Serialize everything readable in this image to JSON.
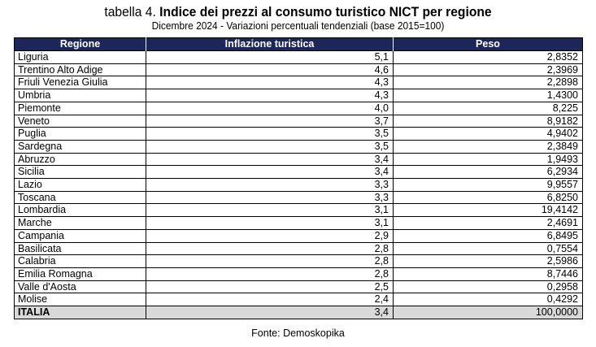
{
  "title_prefix": "tabella 4.",
  "title": "Indice dei prezzi al consumo turistico NICT per regione",
  "subtitle": "Dicembre 2024 - Variazioni percentuali tendenziali (base 2015=100)",
  "header_color": "#1c2758",
  "table": {
    "columns": [
      "Regione",
      "Inflazione turistica",
      "Peso"
    ],
    "rows": [
      [
        "Liguria",
        "5,1",
        "2,8352"
      ],
      [
        "Trentino Alto Adige",
        "4,6",
        "2,3969"
      ],
      [
        "Friuli Venezia Giulia",
        "4,3",
        "2,2898"
      ],
      [
        "Umbria",
        "4,3",
        "1,4300"
      ],
      [
        "Piemonte",
        "4,0",
        "8,225"
      ],
      [
        "Veneto",
        "3,7",
        "8,9182"
      ],
      [
        "Puglia",
        "3,5",
        "4,9402"
      ],
      [
        "Sardegna",
        "3,5",
        "2,3849"
      ],
      [
        "Abruzzo",
        "3,4",
        "1,9493"
      ],
      [
        "Sicilia",
        "3,4",
        "6,2934"
      ],
      [
        "Lazio",
        "3,3",
        "9,9557"
      ],
      [
        "Toscana",
        "3,3",
        "6,8250"
      ],
      [
        "Lombardia",
        "3,1",
        "19,4142"
      ],
      [
        "Marche",
        "3,1",
        "2,4691"
      ],
      [
        "Campania",
        "2,9",
        "6,8495"
      ],
      [
        "Basilicata",
        "2,8",
        "0,7554"
      ],
      [
        "Calabria",
        "2,8",
        "2,5986"
      ],
      [
        "Emilia Romagna",
        "2,8",
        "8,7446"
      ],
      [
        "Valle d'Aosta",
        "2,5",
        "0,2958"
      ],
      [
        "Molise",
        "2,4",
        "0,4292"
      ]
    ],
    "total": [
      "ITALIA",
      "3,4",
      "100,0000"
    ]
  },
  "source": "Fonte: Demoskopika"
}
